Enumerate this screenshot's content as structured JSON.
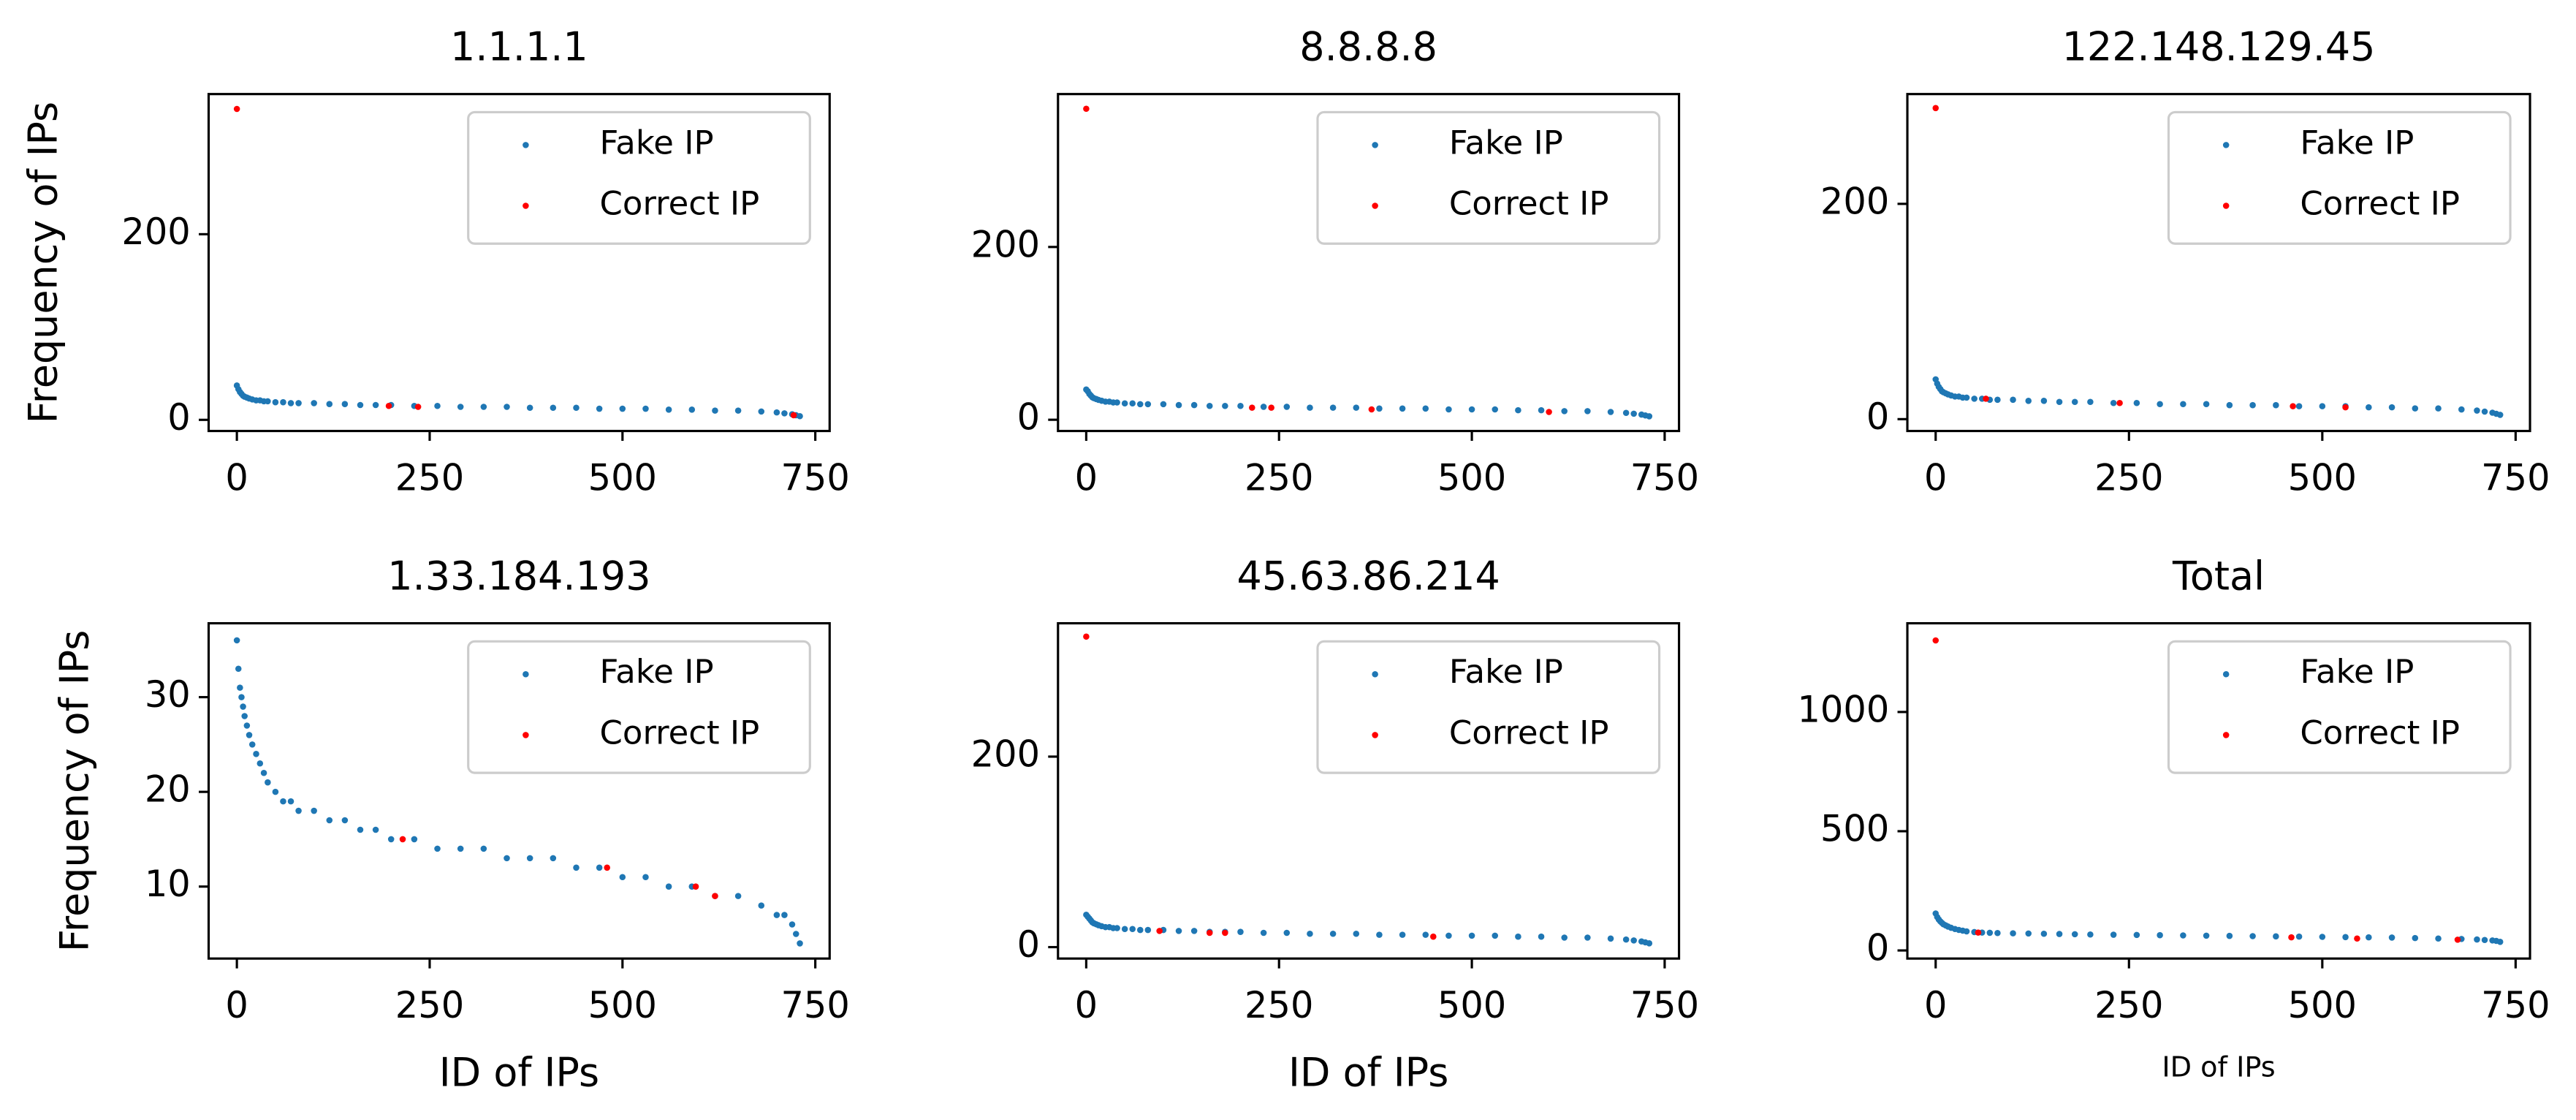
{
  "chart_data": [
    {
      "type": "scatter",
      "title": "1.1.1.1",
      "ylabel": "Frequency of IPs",
      "xlim": [
        -36.6,
        768.6
      ],
      "ylim": [
        -12,
        351
      ],
      "xticks": [
        0,
        250,
        500,
        750
      ],
      "yticks": [
        0,
        200
      ],
      "legend": "upper right",
      "series": [
        {
          "name": "Fake IP",
          "color": "#1f77b4",
          "x": [
            0,
            2,
            4,
            6,
            8,
            10,
            13,
            16,
            20,
            25,
            30,
            35,
            40,
            50,
            60,
            70,
            80,
            100,
            120,
            140,
            160,
            180,
            200,
            230,
            260,
            290,
            320,
            350,
            380,
            410,
            440,
            470,
            500,
            530,
            560,
            590,
            620,
            650,
            680,
            700,
            710,
            720,
            725,
            730
          ],
          "values": [
            37,
            33,
            30,
            28,
            26,
            25,
            24,
            23,
            22,
            21,
            21,
            20,
            20,
            19,
            19,
            18,
            18,
            18,
            17,
            17,
            16,
            16,
            16,
            15,
            15,
            14,
            14,
            14,
            13,
            13,
            13,
            12,
            12,
            12,
            11,
            11,
            10,
            10,
            9,
            8,
            7,
            6,
            5,
            4
          ]
        },
        {
          "name": "Correct IP",
          "color": "#ff0000",
          "x": [
            0,
            197,
            235,
            722
          ],
          "values": [
            335,
            15,
            14,
            5
          ]
        }
      ]
    },
    {
      "type": "scatter",
      "title": "8.8.8.8",
      "xlim": [
        -36.6,
        768.6
      ],
      "ylim": [
        -13,
        377
      ],
      "xticks": [
        0,
        250,
        500,
        750
      ],
      "yticks": [
        0,
        200
      ],
      "legend": "upper right",
      "series": [
        {
          "name": "Fake IP",
          "color": "#1f77b4",
          "x": [
            0,
            2,
            4,
            6,
            8,
            10,
            13,
            16,
            20,
            25,
            30,
            35,
            40,
            50,
            60,
            70,
            80,
            100,
            120,
            140,
            160,
            180,
            200,
            230,
            260,
            290,
            320,
            350,
            380,
            410,
            440,
            470,
            500,
            530,
            560,
            590,
            620,
            650,
            680,
            700,
            710,
            720,
            725,
            730
          ],
          "values": [
            35,
            33,
            30,
            28,
            26,
            25,
            24,
            23,
            22,
            21,
            21,
            20,
            20,
            19,
            19,
            18,
            18,
            18,
            17,
            17,
            16,
            16,
            16,
            15,
            15,
            14,
            14,
            14,
            13,
            13,
            13,
            12,
            12,
            12,
            11,
            11,
            10,
            10,
            9,
            8,
            7,
            6,
            5,
            4
          ]
        },
        {
          "name": "Correct IP",
          "color": "#ff0000",
          "x": [
            0,
            215,
            240,
            370,
            600
          ],
          "values": [
            360,
            14,
            14,
            12,
            9
          ]
        }
      ]
    },
    {
      "type": "scatter",
      "title": "122.148.129.45",
      "xlim": [
        -36.6,
        768.6
      ],
      "ylim": [
        -11,
        302
      ],
      "xticks": [
        0,
        250,
        500,
        750
      ],
      "yticks": [
        0,
        200
      ],
      "legend": "upper right",
      "series": [
        {
          "name": "Fake IP",
          "color": "#1f77b4",
          "x": [
            0,
            2,
            4,
            6,
            8,
            10,
            13,
            16,
            20,
            25,
            30,
            35,
            40,
            50,
            60,
            70,
            80,
            100,
            120,
            140,
            160,
            180,
            200,
            230,
            260,
            290,
            320,
            350,
            380,
            410,
            440,
            470,
            500,
            530,
            560,
            590,
            620,
            650,
            680,
            700,
            710,
            720,
            725,
            730
          ],
          "values": [
            37,
            33,
            30,
            28,
            26,
            25,
            24,
            23,
            22,
            21,
            21,
            20,
            20,
            19,
            19,
            18,
            18,
            18,
            17,
            17,
            16,
            16,
            16,
            15,
            15,
            14,
            14,
            14,
            13,
            13,
            13,
            12,
            12,
            12,
            11,
            11,
            10,
            10,
            9,
            8,
            7,
            6,
            5,
            4
          ]
        },
        {
          "name": "Correct IP",
          "color": "#ff0000",
          "x": [
            0,
            65,
            238,
            462,
            530
          ],
          "values": [
            289,
            19,
            15,
            12,
            11
          ]
        }
      ]
    },
    {
      "type": "scatter",
      "title": "1.33.184.193",
      "ylabel": "Frequency of IPs",
      "xlabel": "ID of IPs",
      "xlim": [
        -36.6,
        768.6
      ],
      "ylim": [
        2.4,
        37.8
      ],
      "xticks": [
        0,
        250,
        500,
        750
      ],
      "yticks": [
        10,
        20,
        30
      ],
      "legend": "upper right",
      "series": [
        {
          "name": "Fake IP",
          "color": "#1f77b4",
          "x": [
            0,
            2,
            4,
            6,
            8,
            10,
            13,
            16,
            20,
            25,
            30,
            35,
            40,
            50,
            60,
            70,
            80,
            100,
            120,
            140,
            160,
            180,
            200,
            230,
            260,
            290,
            320,
            350,
            380,
            410,
            440,
            470,
            500,
            530,
            560,
            590,
            620,
            650,
            680,
            700,
            710,
            720,
            725,
            730
          ],
          "values": [
            36,
            33,
            31,
            30,
            29,
            28,
            27,
            26,
            25,
            24,
            23,
            22,
            21,
            20,
            19,
            19,
            18,
            18,
            17,
            17,
            16,
            16,
            15,
            15,
            14,
            14,
            14,
            13,
            13,
            13,
            12,
            12,
            11,
            11,
            10,
            10,
            9,
            9,
            8,
            7,
            7,
            6,
            5,
            4
          ]
        },
        {
          "name": "Correct IP",
          "color": "#ff0000",
          "x": [
            215,
            480,
            595,
            620
          ],
          "values": [
            15,
            12,
            10,
            9
          ]
        }
      ]
    },
    {
      "type": "scatter",
      "title": "45.63.86.214",
      "xlabel": "ID of IPs",
      "xlim": [
        -36.6,
        768.6
      ],
      "ylim": [
        -12,
        340
      ],
      "xticks": [
        0,
        250,
        500,
        750
      ],
      "yticks": [
        0,
        200
      ],
      "legend": "upper right",
      "series": [
        {
          "name": "Fake IP",
          "color": "#1f77b4",
          "x": [
            0,
            2,
            4,
            6,
            8,
            10,
            13,
            16,
            20,
            25,
            30,
            35,
            40,
            50,
            60,
            70,
            80,
            100,
            120,
            140,
            160,
            180,
            200,
            230,
            260,
            290,
            320,
            350,
            380,
            410,
            440,
            470,
            500,
            530,
            560,
            590,
            620,
            650,
            680,
            700,
            710,
            720,
            725,
            730
          ],
          "values": [
            34,
            32,
            30,
            28,
            26,
            25,
            24,
            23,
            22,
            21,
            21,
            20,
            20,
            19,
            19,
            18,
            18,
            18,
            17,
            17,
            16,
            16,
            16,
            15,
            15,
            14,
            14,
            14,
            13,
            13,
            13,
            12,
            12,
            12,
            11,
            11,
            10,
            10,
            9,
            8,
            7,
            6,
            5,
            4
          ]
        },
        {
          "name": "Correct IP",
          "color": "#ff0000",
          "x": [
            0,
            95,
            160,
            180,
            450
          ],
          "values": [
            326,
            17,
            15,
            15,
            11
          ]
        }
      ]
    },
    {
      "type": "scatter",
      "title": "Total",
      "xlabel": "ID of IPs",
      "xlim": [
        -36.6,
        768.6
      ],
      "ylim": [
        -34,
        1372
      ],
      "xticks": [
        0,
        250,
        500,
        750
      ],
      "yticks": [
        0,
        500,
        1000
      ],
      "legend": "upper right",
      "series": [
        {
          "name": "Fake IP",
          "color": "#1f77b4",
          "x": [
            0,
            2,
            4,
            6,
            8,
            10,
            13,
            16,
            20,
            25,
            30,
            35,
            40,
            50,
            60,
            70,
            80,
            100,
            120,
            140,
            160,
            180,
            200,
            230,
            260,
            290,
            320,
            350,
            380,
            410,
            440,
            470,
            500,
            530,
            560,
            590,
            620,
            650,
            680,
            700,
            710,
            720,
            725,
            730
          ],
          "values": [
            155,
            140,
            130,
            122,
            116,
            110,
            105,
            100,
            95,
            90,
            86,
            83,
            80,
            77,
            75,
            74,
            73,
            72,
            71,
            70,
            69,
            68,
            67,
            66,
            65,
            64,
            63,
            62,
            61,
            60,
            59,
            58,
            57,
            56,
            55,
            54,
            52,
            50,
            48,
            46,
            44,
            42,
            40,
            36
          ]
        },
        {
          "name": "Correct IP",
          "color": "#ff0000",
          "x": [
            0,
            55,
            460,
            545,
            675
          ],
          "values": [
            1300,
            75,
            55,
            50,
            45
          ]
        }
      ]
    }
  ]
}
